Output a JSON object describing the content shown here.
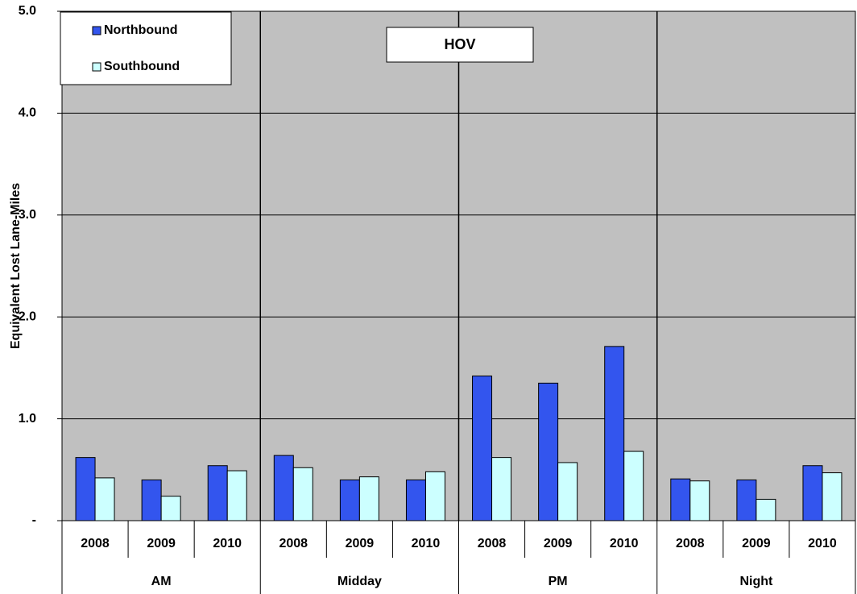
{
  "chart_data": {
    "type": "bar",
    "title": "HOV",
    "y_label": "Equivalent Lost Lane-Miles",
    "groups": [
      "AM",
      "Midday",
      "PM",
      "Night"
    ],
    "categories": [
      "2008",
      "2009",
      "2010",
      "2008",
      "2009",
      "2010",
      "2008",
      "2009",
      "2010",
      "2008",
      "2009",
      "2010"
    ],
    "series": [
      {
        "name": "Northbound",
        "color": "#3355ee",
        "values": [
          0.62,
          0.4,
          0.54,
          0.64,
          0.4,
          0.4,
          1.42,
          1.35,
          1.71,
          0.41,
          0.4,
          0.54
        ]
      },
      {
        "name": "Southbound",
        "color": "#ccffff",
        "values": [
          0.42,
          0.24,
          0.49,
          0.52,
          0.43,
          0.48,
          0.62,
          0.57,
          0.68,
          0.39,
          0.21,
          0.47
        ]
      }
    ],
    "ylim": [
      0,
      5
    ],
    "yticks": [
      {
        "value": 0,
        "label": "-"
      },
      {
        "value": 1,
        "label": "1.0"
      },
      {
        "value": 2,
        "label": "2.0"
      },
      {
        "value": 3,
        "label": "3.0"
      },
      {
        "value": 4,
        "label": "4.0"
      },
      {
        "value": 5,
        "label": "5.0"
      }
    ],
    "grid": true,
    "legend": "top-left"
  }
}
